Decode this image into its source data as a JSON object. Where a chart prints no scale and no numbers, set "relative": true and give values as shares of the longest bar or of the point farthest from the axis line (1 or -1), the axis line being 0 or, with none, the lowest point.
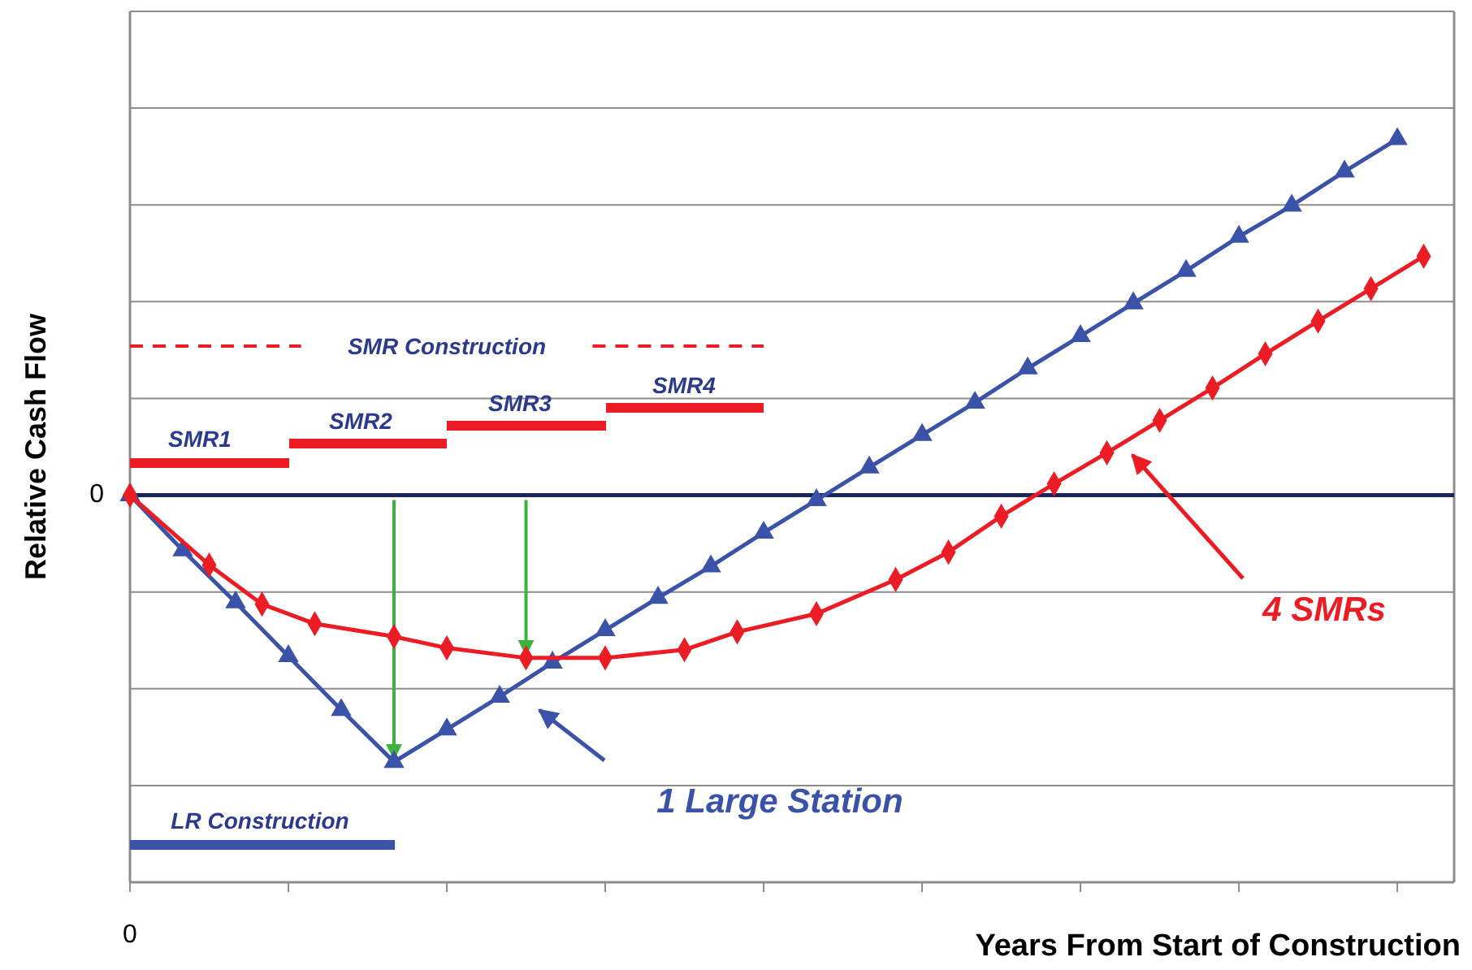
{
  "chart_data": {
    "type": "line",
    "relative": true,
    "ylabel": "Relative Cash Flow",
    "grid": "y",
    "annotations": [
      "0",
      "0",
      "SMR1",
      "SMR2",
      "SMR3",
      "SMR4",
      "SMR Construction",
      "LR Construction",
      "Years From Start of Construction"
    ],
    "categories": [
      null,
      null,
      null,
      null,
      null,
      null,
      null,
      null,
      null,
      null,
      null,
      null,
      null,
      null,
      null,
      null,
      null,
      null,
      null,
      null,
      null,
      null,
      null,
      null,
      null,
      null,
      null,
      null,
      null,
      null,
      null,
      null,
      null,
      null,
      null,
      null,
      null,
      null,
      null,
      null,
      null,
      null,
      null,
      null,
      null,
      null,
      null,
      null,
      null,
      null
    ],
    "series": [
      {
        "name": "1 Large Station",
        "color": "#3a52a8",
        "marker": "triangle",
        "line_style": "solid",
        "values": [
          0,
          null,
          -0.155,
          null,
          -0.301,
          null,
          -0.452,
          null,
          -0.603,
          null,
          -0.749,
          null,
          -0.658,
          null,
          -0.566,
          null,
          -0.47,
          null,
          -0.379,
          null,
          -0.288,
          null,
          -0.2,
          null,
          -0.105,
          null,
          -0.014,
          null,
          0.078,
          null,
          0.169,
          null,
          0.26,
          null,
          0.356,
          null,
          0.447,
          null,
          0.539,
          null,
          0.63,
          null,
          0.726,
          null,
          0.813,
          null,
          0.909,
          null,
          1,
          null
        ]
      },
      {
        "name": "4 SMRs",
        "color": "#ec1c24",
        "marker": "diamond",
        "line_style": "solid",
        "values": [
          0,
          null,
          null,
          -0.196,
          null,
          -0.306,
          null,
          -0.361,
          null,
          null,
          -0.397,
          null,
          -0.429,
          null,
          null,
          -0.457,
          null,
          null,
          -0.457,
          null,
          null,
          -0.434,
          null,
          -0.384,
          null,
          null,
          -0.333,
          null,
          null,
          -0.237,
          null,
          -0.16,
          null,
          -0.059,
          null,
          0.032,
          null,
          0.119,
          null,
          0.21,
          null,
          0.301,
          null,
          0.397,
          null,
          0.489,
          null,
          0.58,
          null,
          0.671
        ]
      }
    ]
  }
}
